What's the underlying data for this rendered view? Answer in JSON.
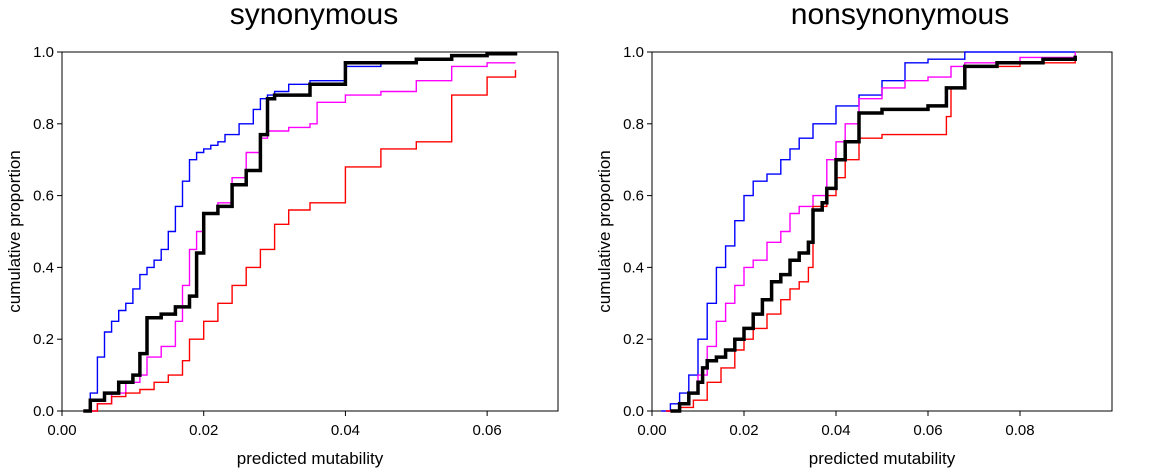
{
  "chart_data": [
    {
      "type": "line",
      "title": "synonymous",
      "xlabel": "predicted mutability",
      "ylabel": "cumulative proportion",
      "xlim": [
        0,
        0.07
      ],
      "ylim": [
        0,
        1
      ],
      "xticks": [
        0,
        0.02,
        0.04,
        0.06
      ],
      "xtick_labels": [
        "0.00",
        "0.02",
        "0.04",
        "0.06"
      ],
      "yticks": [
        0,
        0.2,
        0.4,
        0.6,
        0.8,
        1.0
      ],
      "ytick_labels": [
        "0.0",
        "0.2",
        "0.4",
        "0.6",
        "0.8",
        "1.0"
      ],
      "series": [
        {
          "name": "blue",
          "color": "#0000ff",
          "stroke_width": 1.4,
          "x": [
            0.003,
            0.004,
            0.005,
            0.006,
            0.007,
            0.008,
            0.009,
            0.01,
            0.011,
            0.012,
            0.013,
            0.014,
            0.015,
            0.016,
            0.017,
            0.018,
            0.019,
            0.02,
            0.021,
            0.022,
            0.023,
            0.025,
            0.027,
            0.028,
            0.029,
            0.03,
            0.032,
            0.035,
            0.04,
            0.045,
            0.05,
            0.055,
            0.06,
            0.064
          ],
          "y": [
            0.0,
            0.05,
            0.15,
            0.22,
            0.25,
            0.28,
            0.3,
            0.34,
            0.38,
            0.4,
            0.42,
            0.45,
            0.5,
            0.57,
            0.64,
            0.7,
            0.72,
            0.73,
            0.74,
            0.75,
            0.77,
            0.8,
            0.84,
            0.87,
            0.88,
            0.89,
            0.91,
            0.92,
            0.96,
            0.97,
            0.98,
            0.99,
            0.995,
            1.0
          ]
        },
        {
          "name": "magenta",
          "color": "#ff00ff",
          "stroke_width": 1.4,
          "x": [
            0.003,
            0.005,
            0.007,
            0.009,
            0.011,
            0.012,
            0.014,
            0.016,
            0.017,
            0.018,
            0.019,
            0.02,
            0.022,
            0.024,
            0.026,
            0.028,
            0.029,
            0.03,
            0.032,
            0.035,
            0.036,
            0.04,
            0.045,
            0.05,
            0.055,
            0.06,
            0.064
          ],
          "y": [
            0.0,
            0.02,
            0.05,
            0.08,
            0.1,
            0.15,
            0.18,
            0.25,
            0.35,
            0.45,
            0.5,
            0.55,
            0.58,
            0.65,
            0.72,
            0.76,
            0.78,
            0.78,
            0.79,
            0.8,
            0.86,
            0.88,
            0.89,
            0.92,
            0.96,
            0.97,
            0.97
          ]
        },
        {
          "name": "red",
          "color": "#ff0000",
          "stroke_width": 1.4,
          "x": [
            0.003,
            0.005,
            0.007,
            0.009,
            0.011,
            0.013,
            0.015,
            0.017,
            0.018,
            0.02,
            0.022,
            0.024,
            0.026,
            0.028,
            0.03,
            0.032,
            0.035,
            0.04,
            0.045,
            0.05,
            0.055,
            0.06,
            0.064
          ],
          "y": [
            0.0,
            0.02,
            0.04,
            0.05,
            0.06,
            0.08,
            0.1,
            0.14,
            0.2,
            0.25,
            0.3,
            0.35,
            0.4,
            0.45,
            0.52,
            0.56,
            0.58,
            0.68,
            0.73,
            0.75,
            0.88,
            0.93,
            0.95
          ]
        },
        {
          "name": "black",
          "color": "#000000",
          "stroke_width": 3.5,
          "x": [
            0.003,
            0.004,
            0.006,
            0.008,
            0.01,
            0.011,
            0.012,
            0.014,
            0.016,
            0.018,
            0.019,
            0.02,
            0.022,
            0.024,
            0.026,
            0.028,
            0.029,
            0.03,
            0.035,
            0.04,
            0.045,
            0.05,
            0.055,
            0.06,
            0.064
          ],
          "y": [
            0.0,
            0.03,
            0.05,
            0.08,
            0.1,
            0.16,
            0.26,
            0.27,
            0.29,
            0.32,
            0.44,
            0.55,
            0.57,
            0.63,
            0.67,
            0.77,
            0.87,
            0.88,
            0.91,
            0.97,
            0.97,
            0.98,
            0.99,
            0.995,
            1.0
          ]
        }
      ]
    },
    {
      "type": "line",
      "title": "nonsynonymous",
      "xlabel": "predicted mutability",
      "ylabel": "cumulative proportion",
      "xlim": [
        0,
        0.1
      ],
      "ylim": [
        0,
        1
      ],
      "xticks": [
        0,
        0.02,
        0.04,
        0.06,
        0.08
      ],
      "xtick_labels": [
        "0.00",
        "0.02",
        "0.04",
        "0.06",
        "0.08"
      ],
      "yticks": [
        0,
        0.2,
        0.4,
        0.6,
        0.8,
        1.0
      ],
      "ytick_labels": [
        "0.0",
        "0.2",
        "0.4",
        "0.6",
        "0.8",
        "1.0"
      ],
      "series": [
        {
          "name": "blue",
          "color": "#0000ff",
          "stroke_width": 1.4,
          "x": [
            0.002,
            0.004,
            0.006,
            0.008,
            0.01,
            0.012,
            0.014,
            0.016,
            0.018,
            0.02,
            0.022,
            0.025,
            0.028,
            0.03,
            0.032,
            0.035,
            0.04,
            0.045,
            0.05,
            0.055,
            0.06,
            0.068,
            0.075,
            0.092
          ],
          "y": [
            0.0,
            0.02,
            0.05,
            0.1,
            0.2,
            0.3,
            0.4,
            0.46,
            0.53,
            0.6,
            0.64,
            0.66,
            0.7,
            0.73,
            0.76,
            0.8,
            0.85,
            0.88,
            0.92,
            0.97,
            0.98,
            1.0,
            1.0,
            1.0
          ]
        },
        {
          "name": "magenta",
          "color": "#ff00ff",
          "stroke_width": 1.4,
          "x": [
            0.003,
            0.006,
            0.008,
            0.01,
            0.012,
            0.014,
            0.016,
            0.018,
            0.02,
            0.022,
            0.025,
            0.028,
            0.03,
            0.032,
            0.035,
            0.038,
            0.04,
            0.042,
            0.045,
            0.05,
            0.055,
            0.06,
            0.065,
            0.068,
            0.08,
            0.092
          ],
          "y": [
            0.0,
            0.02,
            0.05,
            0.1,
            0.18,
            0.25,
            0.3,
            0.35,
            0.4,
            0.42,
            0.47,
            0.5,
            0.55,
            0.57,
            0.6,
            0.7,
            0.75,
            0.8,
            0.87,
            0.9,
            0.92,
            0.93,
            0.96,
            0.97,
            0.985,
            1.0
          ]
        },
        {
          "name": "red",
          "color": "#ff0000",
          "stroke_width": 1.4,
          "x": [
            0.003,
            0.006,
            0.009,
            0.012,
            0.015,
            0.018,
            0.02,
            0.022,
            0.025,
            0.028,
            0.03,
            0.032,
            0.034,
            0.035,
            0.038,
            0.04,
            0.042,
            0.045,
            0.05,
            0.055,
            0.06,
            0.064,
            0.065,
            0.068,
            0.08,
            0.092
          ],
          "y": [
            0.0,
            0.01,
            0.03,
            0.08,
            0.12,
            0.17,
            0.2,
            0.23,
            0.27,
            0.31,
            0.34,
            0.36,
            0.4,
            0.57,
            0.6,
            0.65,
            0.7,
            0.76,
            0.77,
            0.77,
            0.77,
            0.82,
            0.9,
            0.96,
            0.97,
            0.98
          ]
        },
        {
          "name": "black",
          "color": "#000000",
          "stroke_width": 3.5,
          "x": [
            0.004,
            0.006,
            0.008,
            0.01,
            0.011,
            0.012,
            0.014,
            0.016,
            0.018,
            0.02,
            0.022,
            0.024,
            0.026,
            0.028,
            0.03,
            0.032,
            0.034,
            0.035,
            0.037,
            0.038,
            0.04,
            0.042,
            0.045,
            0.05,
            0.055,
            0.06,
            0.064,
            0.068,
            0.075,
            0.085,
            0.092
          ],
          "y": [
            0.0,
            0.02,
            0.05,
            0.08,
            0.12,
            0.14,
            0.15,
            0.17,
            0.2,
            0.23,
            0.27,
            0.31,
            0.36,
            0.38,
            0.42,
            0.44,
            0.47,
            0.56,
            0.58,
            0.62,
            0.7,
            0.75,
            0.83,
            0.84,
            0.84,
            0.85,
            0.9,
            0.96,
            0.97,
            0.98,
            0.99
          ]
        }
      ]
    }
  ]
}
